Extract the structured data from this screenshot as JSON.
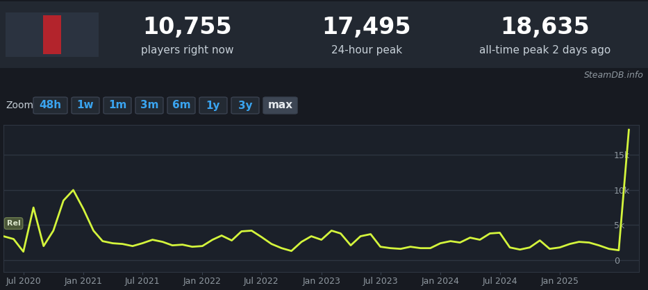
{
  "header": {
    "stats": [
      {
        "value": "10,755",
        "label": "players right now"
      },
      {
        "value": "17,495",
        "label": "24-hour peak"
      },
      {
        "value": "18,635",
        "label": "all-time peak 2 days ago"
      }
    ],
    "source": "SteamDB.info"
  },
  "zoom": {
    "label": "Zoom",
    "options": [
      "48h",
      "1w",
      "1m",
      "3m",
      "6m",
      "1y",
      "3y",
      "max"
    ],
    "selected": "max"
  },
  "chart_data": {
    "type": "line",
    "color": "#d4f53c",
    "x": [
      "2020-05",
      "2020-06",
      "2020-07",
      "2020-08",
      "2020-09",
      "2020-10",
      "2020-11",
      "2020-12",
      "2021-01",
      "2021-02",
      "2021-03",
      "2021-04",
      "2021-05",
      "2021-06",
      "2021-07",
      "2021-08",
      "2021-09",
      "2021-10",
      "2021-11",
      "2021-12",
      "2022-01",
      "2022-02",
      "2022-03",
      "2022-04",
      "2022-05",
      "2022-06",
      "2022-07",
      "2022-08",
      "2022-09",
      "2022-10",
      "2022-11",
      "2022-12",
      "2023-01",
      "2023-02",
      "2023-03",
      "2023-04",
      "2023-05",
      "2023-06",
      "2023-07",
      "2023-08",
      "2023-09",
      "2023-10",
      "2023-11",
      "2023-12",
      "2024-01",
      "2024-02",
      "2024-03",
      "2024-04",
      "2024-05",
      "2024-06",
      "2024-07",
      "2024-08",
      "2024-09",
      "2024-10",
      "2024-11",
      "2024-12",
      "2025-01",
      "2025-02",
      "2025-03",
      "2025-04",
      "2025-05",
      "2025-06",
      "2025-07",
      "2025-08"
    ],
    "values": [
      3400,
      3000,
      1200,
      7500,
      2000,
      4200,
      8500,
      10000,
      7300,
      4200,
      2700,
      2400,
      2300,
      2000,
      2400,
      2900,
      2600,
      2100,
      2200,
      1900,
      2000,
      2900,
      3500,
      2800,
      4100,
      4200,
      3300,
      2300,
      1700,
      1300,
      2600,
      3400,
      2900,
      4200,
      3800,
      2100,
      3400,
      3700,
      1900,
      1700,
      1600,
      1900,
      1700,
      1700,
      2400,
      2700,
      2500,
      3200,
      2900,
      3800,
      3900,
      1800,
      1500,
      1800,
      2800,
      1600,
      1800,
      2300,
      2600,
      2500,
      2100,
      1600,
      1400,
      18600
    ],
    "xlim": [
      "2020-05",
      "2025-09"
    ],
    "xticks": [
      {
        "value": "2020-07",
        "label": "Jul 2020"
      },
      {
        "value": "2021-01",
        "label": "Jan 2021"
      },
      {
        "value": "2021-07",
        "label": "Jul 2021"
      },
      {
        "value": "2022-01",
        "label": "Jan 2022"
      },
      {
        "value": "2022-07",
        "label": "Jul 2022"
      },
      {
        "value": "2023-01",
        "label": "Jan 2023"
      },
      {
        "value": "2023-07",
        "label": "Jul 2023"
      },
      {
        "value": "2024-01",
        "label": "Jan 2024"
      },
      {
        "value": "2024-07",
        "label": "Jul 2024"
      },
      {
        "value": "2025-01",
        "label": "Jan 2025"
      }
    ],
    "ylim": [
      -1700,
      19300
    ],
    "yticks": [
      0,
      {
        "value": 5000,
        "label": "5k"
      },
      {
        "value": 10000,
        "label": "10k"
      },
      {
        "value": 15000,
        "label": "15k"
      }
    ],
    "grid": true,
    "annotations": [
      {
        "text": "Rel",
        "x": "2020-06"
      }
    ]
  }
}
